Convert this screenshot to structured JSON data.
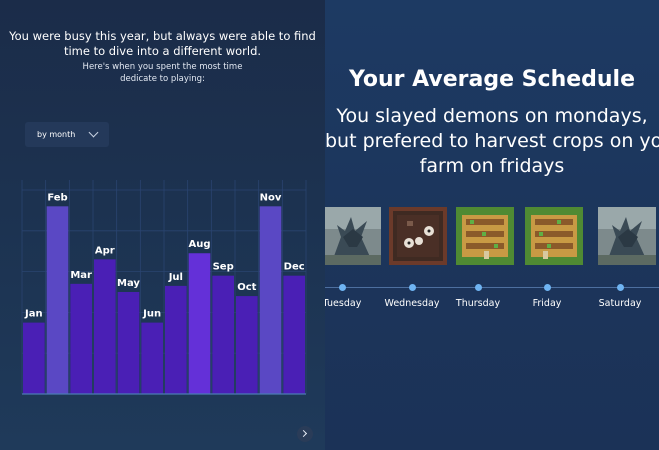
{
  "left": {
    "intro_line1": "You were busy this year, but always were able to find",
    "intro_line2": "time to dive into a different world.",
    "intro_line3": "Here's when you spent the most time",
    "intro_line4": "dedicate to playing:",
    "dropdown_label": "by month"
  },
  "chart_data": {
    "type": "bar",
    "categories": [
      "Jan",
      "Feb",
      "Mar",
      "Apr",
      "May",
      "Jun",
      "Jul",
      "Aug",
      "Sep",
      "Oct",
      "Nov",
      "Dec"
    ],
    "values": [
      3.5,
      9.2,
      5.4,
      6.6,
      5.0,
      3.5,
      5.3,
      6.9,
      5.8,
      4.8,
      9.2,
      5.8
    ],
    "ylim": [
      0,
      10
    ],
    "grid": true,
    "colors": {
      "bar": "#4a1fb5",
      "highlight_bar": "#5a48c4",
      "hover_bar": "#6430d8"
    },
    "highlight": [
      "Feb",
      "Nov"
    ],
    "hover": "Aug",
    "title": "",
    "xlabel": "",
    "ylabel": ""
  },
  "right": {
    "title": "Your Average Schedule",
    "subtitle_line1": "You slayed demons on mondays,",
    "subtitle_line2": "but prefered to harvest crops on your",
    "subtitle_line3": "farm on fridays",
    "days": [
      {
        "label": "Tuesday",
        "image": "dragon-game-icon"
      },
      {
        "label": "Wednesday",
        "image": "dungeon-game-icon"
      },
      {
        "label": "Thursday",
        "image": "farm-game-icon"
      },
      {
        "label": "Friday",
        "image": "farm-game-icon"
      },
      {
        "label": "Saturday",
        "image": "dragon-game-icon"
      }
    ]
  }
}
